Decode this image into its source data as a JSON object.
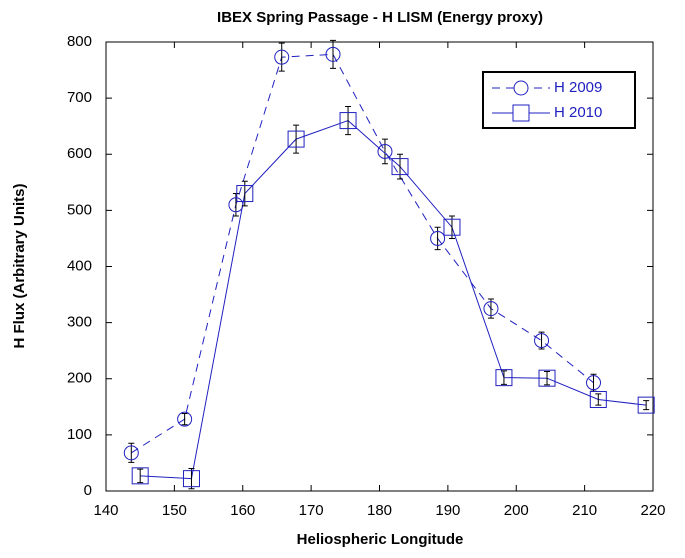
{
  "chart_data": {
    "type": "line",
    "title": "IBEX Spring Passage - H LISM  (Energy proxy)",
    "xlabel": "Heliospheric Longitude",
    "ylabel": "H Flux (Arbitrary Units)",
    "xlim": [
      140,
      220
    ],
    "xticks": [
      140,
      150,
      160,
      170,
      180,
      190,
      200,
      210,
      220
    ],
    "ylim": [
      0,
      800
    ],
    "yticks": [
      0,
      100,
      200,
      300,
      400,
      500,
      600,
      700,
      800
    ],
    "legend": "top-right",
    "series": [
      {
        "name": "H 2009",
        "color": "#2020c0",
        "marker": "circle",
        "dash": true,
        "x": [
          143.7,
          151.5,
          159,
          165.7,
          173.2,
          180.8,
          188.5,
          196.3,
          203.7,
          211.3
        ],
        "values": [
          68,
          128,
          510,
          773,
          778,
          605,
          450,
          325,
          268,
          193
        ],
        "errors": [
          17,
          10,
          20,
          25,
          25,
          22,
          20,
          17,
          15,
          15
        ]
      },
      {
        "name": "H 2010",
        "color": "#2020c0",
        "marker": "square",
        "dash": false,
        "x": [
          145,
          152.5,
          160.3,
          167.8,
          175.4,
          183,
          190.6,
          198.2,
          204.5,
          212,
          219
        ],
        "values": [
          27,
          22,
          530,
          627,
          660,
          578,
          470,
          202,
          201,
          163,
          153
        ],
        "errors": [
          12,
          18,
          22,
          25,
          25,
          22,
          20,
          12,
          12,
          10,
          8
        ]
      }
    ]
  }
}
